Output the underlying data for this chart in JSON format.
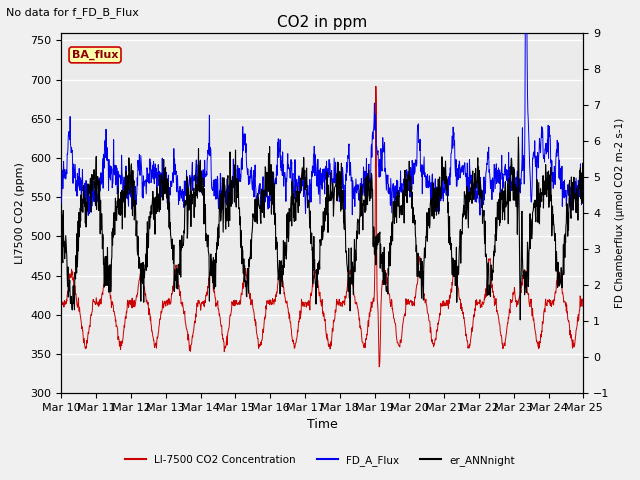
{
  "title": "CO2 in ppm",
  "top_left_text": "No data for f_FD_B_Flux",
  "annotation_text": "BA_flux",
  "xlabel": "Time",
  "ylabel_left": "LI7500 CO2 (ppm)",
  "ylabel_right": "FD Chamberflux (μmol CO2 m-2 s-1)",
  "ylim_left": [
    300,
    760
  ],
  "ylim_right": [
    -1.0,
    9.0
  ],
  "yticks_left": [
    300,
    350,
    400,
    450,
    500,
    550,
    600,
    650,
    700,
    750
  ],
  "yticks_right": [
    -1.0,
    0.0,
    1.0,
    2.0,
    3.0,
    4.0,
    5.0,
    6.0,
    7.0,
    8.0,
    9.0
  ],
  "xtick_labels": [
    "Mar 10",
    "Mar 11",
    "Mar 12",
    "Mar 13",
    "Mar 14",
    "Mar 15",
    "Mar 16",
    "Mar 17",
    "Mar 18",
    "Mar 19",
    "Mar 20",
    "Mar 21",
    "Mar 22",
    "Mar 23",
    "Mar 24",
    "Mar 25"
  ],
  "legend_labels": [
    "LI-7500 CO2 Concentration",
    "FD_A_Flux",
    "er_ANNnight"
  ],
  "line_colors": [
    "#cc0000",
    "#0000ee",
    "#000000"
  ],
  "plot_bg_color": "#ebebeb",
  "grid_color": "#ffffff",
  "annotation_bg": "#ffffaa",
  "annotation_border": "#cc0000",
  "annotation_text_color": "#8b0000",
  "fig_bg": "#f0f0f0"
}
